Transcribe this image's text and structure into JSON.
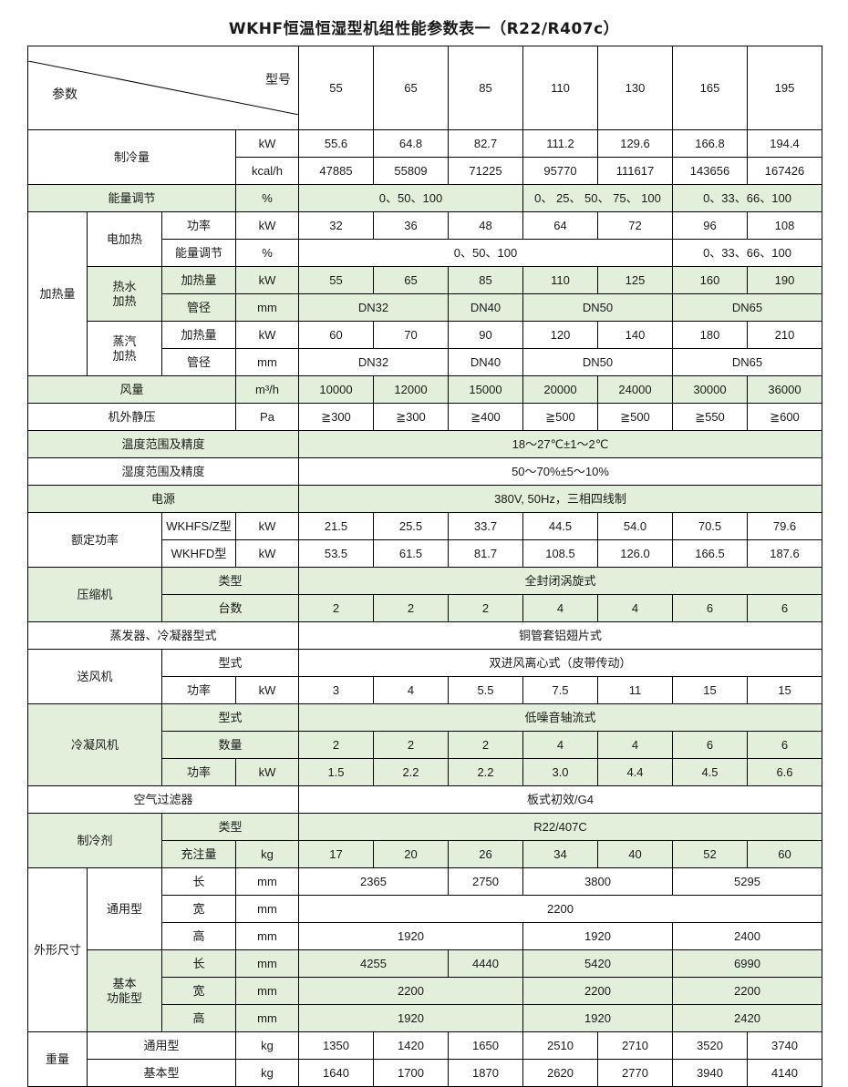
{
  "title": "WKHF恒温恒湿型机组性能参数表一（R22/R407c）",
  "highlight_color": "#e2efda",
  "header": {
    "param_label": "参数",
    "model_label": "型号",
    "models": [
      "55",
      "65",
      "85",
      "110",
      "130",
      "165",
      "195"
    ]
  },
  "rows": [
    [
      "制冷量",
      "kW",
      "55.6",
      "64.8",
      "82.7",
      "111.2",
      "129.6",
      "166.8",
      "194.4"
    ],
    [
      "kcal/h",
      "47885",
      "55809",
      "71225",
      "95770",
      "111617",
      "143656",
      "167426"
    ],
    [
      "能量调节",
      "%",
      "0、50、100",
      "0、 25、 50、 75、 100",
      "0、33、66、100"
    ],
    [
      "加热量",
      "电加热",
      "功率",
      "kW",
      "32",
      "36",
      "48",
      "64",
      "72",
      "96",
      "108"
    ],
    [
      "能量调节",
      "%",
      "0、50、100",
      "0、33、66、100"
    ],
    [
      "热水\n加热",
      "加热量",
      "kW",
      "55",
      "65",
      "85",
      "110",
      "125",
      "160",
      "190"
    ],
    [
      "管径",
      "mm",
      "DN32",
      "DN40",
      "DN50",
      "DN65"
    ],
    [
      "蒸汽\n加热",
      "加热量",
      "kW",
      "60",
      "70",
      "90",
      "120",
      "140",
      "180",
      "210"
    ],
    [
      "管径",
      "mm",
      "DN32",
      "DN40",
      "DN50",
      "DN65"
    ],
    [
      "风量",
      "m³/h",
      "10000",
      "12000",
      "15000",
      "20000",
      "24000",
      "30000",
      "36000"
    ],
    [
      "机外静压",
      "Pa",
      "≧300",
      "≧300",
      "≧400",
      "≧500",
      "≧500",
      "≧550",
      "≧600"
    ],
    [
      "温度范围及精度",
      "18～27℃±1～2℃"
    ],
    [
      "湿度范围及精度",
      "50～70%±5～10%"
    ],
    [
      "电源",
      "380V, 50Hz，三相四线制"
    ],
    [
      "额定功率",
      "WKHFS/Z型",
      "kW",
      "21.5",
      "25.5",
      "33.7",
      "44.5",
      "54.0",
      "70.5",
      "79.6"
    ],
    [
      "WKHFD型",
      "kW",
      "53.5",
      "61.5",
      "81.7",
      "108.5",
      "126.0",
      "166.5",
      "187.6"
    ],
    [
      "压缩机",
      "类型",
      "全封闭涡旋式"
    ],
    [
      "台数",
      "2",
      "2",
      "2",
      "4",
      "4",
      "6",
      "6"
    ],
    [
      "蒸发器、冷凝器型式",
      "铜管套铝翅片式"
    ],
    [
      "送风机",
      "型式",
      "双进风离心式（皮带传动）"
    ],
    [
      "功率",
      "kW",
      "3",
      "4",
      "5.5",
      "7.5",
      "11",
      "15",
      "15"
    ],
    [
      "冷凝风机",
      "型式",
      "低噪音轴流式"
    ],
    [
      "数量",
      "2",
      "2",
      "2",
      "4",
      "4",
      "6",
      "6"
    ],
    [
      "功率",
      "kW",
      "1.5",
      "2.2",
      "2.2",
      "3.0",
      "4.4",
      "4.5",
      "6.6"
    ],
    [
      "空气过滤器",
      "板式初效/G4"
    ],
    [
      "制冷剂",
      "类型",
      "R22/407C"
    ],
    [
      "充注量",
      "kg",
      "17",
      "20",
      "26",
      "34",
      "40",
      "52",
      "60"
    ],
    [
      "外形尺寸",
      "通用型",
      "长",
      "mm",
      "2365",
      "2750",
      "3800",
      "5295"
    ],
    [
      "宽",
      "mm",
      "2200"
    ],
    [
      "高",
      "mm",
      "1920",
      "1920",
      "2400"
    ],
    [
      "基本\n功能型",
      "长",
      "mm",
      "4255",
      "4440",
      "5420",
      "6990"
    ],
    [
      "宽",
      "mm",
      "2200",
      "2200",
      "2200"
    ],
    [
      "高",
      "mm",
      "1920",
      "1920",
      "2420"
    ],
    [
      "重量",
      "通用型",
      "kg",
      "1350",
      "1420",
      "1650",
      "2510",
      "2710",
      "3520",
      "3740"
    ],
    [
      "基本型",
      "kg",
      "1640",
      "1700",
      "1870",
      "2620",
      "2770",
      "3940",
      "4140"
    ]
  ]
}
